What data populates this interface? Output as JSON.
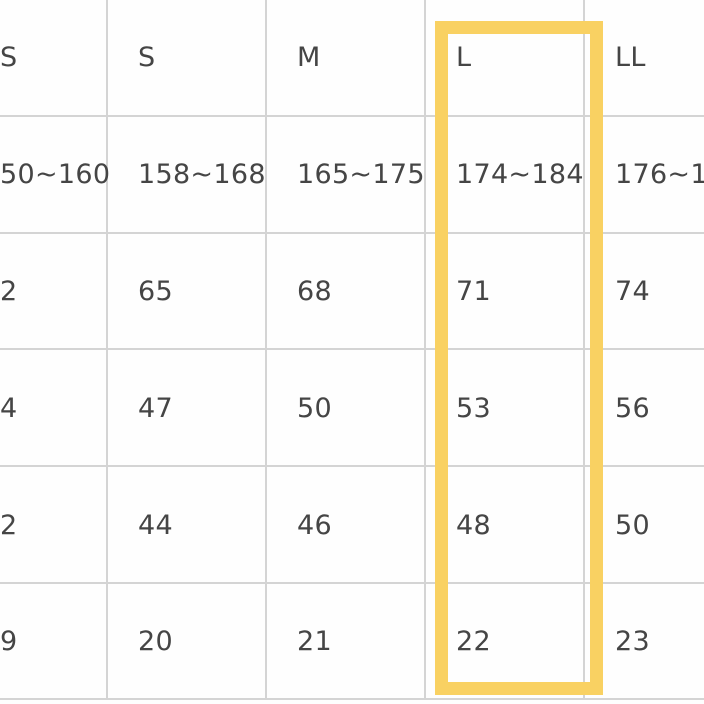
{
  "table": {
    "rows": [
      [
        "S",
        "S",
        "M",
        "L",
        "LL"
      ],
      [
        "50~160",
        "158~168",
        "165~175",
        "174~184",
        "176~1"
      ],
      [
        "2",
        "65",
        "68",
        "71",
        "74"
      ],
      [
        "4",
        "47",
        "50",
        "53",
        "56"
      ],
      [
        "2",
        "44",
        "46",
        "48",
        "50"
      ],
      [
        "9",
        "20",
        "21",
        "22",
        "23"
      ]
    ],
    "highlighted_column": "L",
    "highlight_color": "#f9d162",
    "grid_color": "#d4d4d4",
    "text_color": "#454545"
  }
}
